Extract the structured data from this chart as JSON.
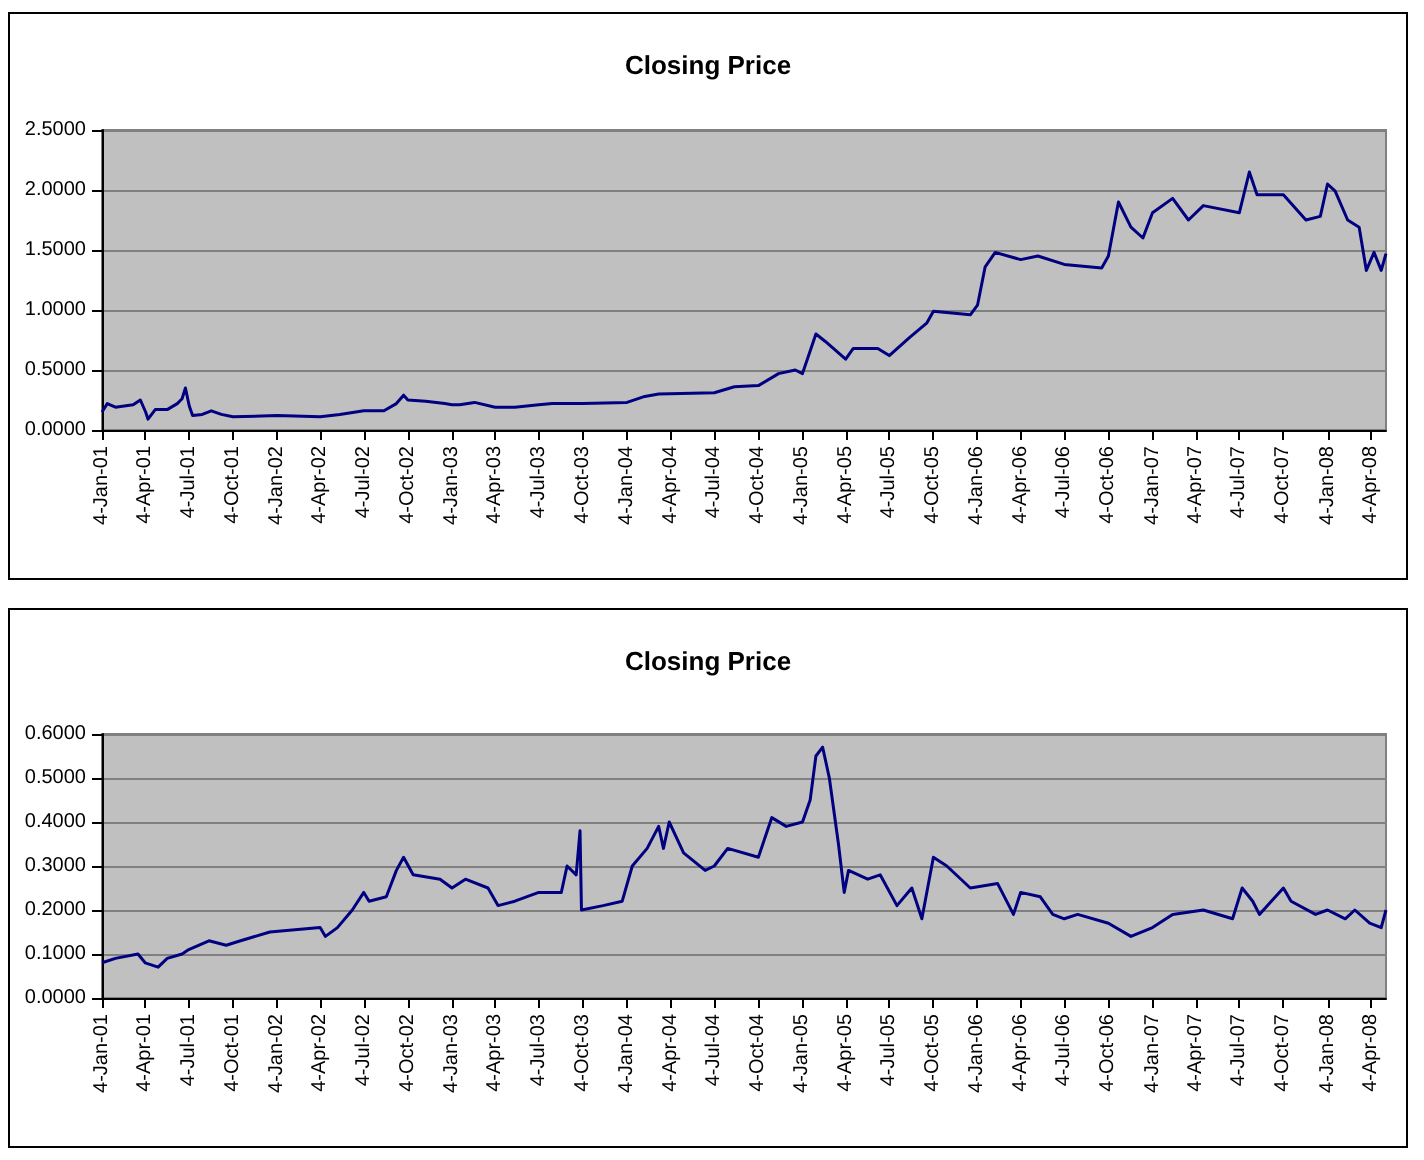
{
  "chart_data": [
    {
      "type": "line",
      "title": "Closing Price",
      "x": [
        "2001-01-04",
        "2001-01-15",
        "2001-02-01",
        "2001-03-10",
        "2001-03-25",
        "2001-04-05",
        "2001-04-10",
        "2001-04-25",
        "2001-05-20",
        "2001-06-10",
        "2001-06-20",
        "2001-06-27",
        "2001-07-05",
        "2001-07-12",
        "2001-08-01",
        "2001-08-20",
        "2001-09-10",
        "2001-10-04",
        "2002-01-04",
        "2002-04-04",
        "2002-05-15",
        "2002-07-04",
        "2002-08-15",
        "2002-09-10",
        "2002-09-25",
        "2002-10-04",
        "2002-11-10",
        "2002-12-20",
        "2003-01-04",
        "2003-01-20",
        "2003-02-20",
        "2003-04-04",
        "2003-05-15",
        "2003-07-04",
        "2003-08-01",
        "2003-10-04",
        "2004-01-04",
        "2004-02-10",
        "2004-03-10",
        "2004-07-04",
        "2004-08-15",
        "2004-10-04",
        "2004-11-15",
        "2004-12-20",
        "2005-01-04",
        "2005-02-01",
        "2005-02-20",
        "2005-04-04",
        "2005-04-20",
        "2005-06-10",
        "2005-07-04",
        "2005-08-15",
        "2005-09-20",
        "2005-10-04",
        "2005-12-20",
        "2006-01-04",
        "2006-01-20",
        "2006-02-10",
        "2006-04-04",
        "2006-05-10",
        "2006-07-04",
        "2006-09-20",
        "2006-10-04",
        "2006-10-25",
        "2006-11-20",
        "2006-12-15",
        "2007-01-04",
        "2007-02-15",
        "2007-03-20",
        "2007-04-20",
        "2007-07-04",
        "2007-07-25",
        "2007-08-10",
        "2007-10-04",
        "2007-11-20",
        "2007-12-20",
        "2008-01-04",
        "2008-01-20",
        "2008-02-15",
        "2008-03-10",
        "2008-03-25",
        "2008-04-10",
        "2008-04-25",
        "2008-05-05"
      ],
      "series": [
        {
          "color": "#000080",
          "values": [
            0.15,
            0.22,
            0.19,
            0.21,
            0.25,
            0.15,
            0.09,
            0.17,
            0.17,
            0.22,
            0.26,
            0.35,
            0.2,
            0.12,
            0.13,
            0.16,
            0.13,
            0.11,
            0.12,
            0.11,
            0.13,
            0.16,
            0.16,
            0.22,
            0.29,
            0.25,
            0.24,
            0.22,
            0.21,
            0.21,
            0.23,
            0.19,
            0.19,
            0.21,
            0.22,
            0.22,
            0.23,
            0.28,
            0.3,
            0.31,
            0.36,
            0.37,
            0.47,
            0.5,
            0.47,
            0.8,
            0.74,
            0.59,
            0.68,
            0.68,
            0.62,
            0.77,
            0.89,
            0.99,
            0.96,
            1.04,
            1.36,
            1.48,
            1.42,
            1.45,
            1.38,
            1.35,
            1.45,
            1.9,
            1.69,
            1.6,
            1.81,
            1.93,
            1.75,
            1.87,
            1.81,
            2.15,
            1.96,
            1.96,
            1.75,
            1.78,
            2.05,
            1.99,
            1.75,
            1.69,
            1.33,
            1.48,
            1.33,
            1.47
          ]
        }
      ],
      "xlim": [
        "2001-01-04",
        "2008-05-05"
      ],
      "xticks": [
        {
          "value": "2001-01-04",
          "label": "4-Jan-01"
        },
        {
          "value": "2001-04-04",
          "label": "4-Apr-01"
        },
        {
          "value": "2001-07-04",
          "label": "4-Jul-01"
        },
        {
          "value": "2001-10-04",
          "label": "4-Oct-01"
        },
        {
          "value": "2002-01-04",
          "label": "4-Jan-02"
        },
        {
          "value": "2002-04-04",
          "label": "4-Apr-02"
        },
        {
          "value": "2002-07-04",
          "label": "4-Jul-02"
        },
        {
          "value": "2002-10-04",
          "label": "4-Oct-02"
        },
        {
          "value": "2003-01-04",
          "label": "4-Jan-03"
        },
        {
          "value": "2003-04-04",
          "label": "4-Apr-03"
        },
        {
          "value": "2003-07-04",
          "label": "4-Jul-03"
        },
        {
          "value": "2003-10-04",
          "label": "4-Oct-03"
        },
        {
          "value": "2004-01-04",
          "label": "4-Jan-04"
        },
        {
          "value": "2004-04-04",
          "label": "4-Apr-04"
        },
        {
          "value": "2004-07-04",
          "label": "4-Jul-04"
        },
        {
          "value": "2004-10-04",
          "label": "4-Oct-04"
        },
        {
          "value": "2005-01-04",
          "label": "4-Jan-05"
        },
        {
          "value": "2005-04-04",
          "label": "4-Apr-05"
        },
        {
          "value": "2005-07-04",
          "label": "4-Jul-05"
        },
        {
          "value": "2005-10-04",
          "label": "4-Oct-05"
        },
        {
          "value": "2006-01-04",
          "label": "4-Jan-06"
        },
        {
          "value": "2006-04-04",
          "label": "4-Apr-06"
        },
        {
          "value": "2006-07-04",
          "label": "4-Jul-06"
        },
        {
          "value": "2006-10-04",
          "label": "4-Oct-06"
        },
        {
          "value": "2007-01-04",
          "label": "4-Jan-07"
        },
        {
          "value": "2007-04-04",
          "label": "4-Apr-07"
        },
        {
          "value": "2007-07-04",
          "label": "4-Jul-07"
        },
        {
          "value": "2007-10-04",
          "label": "4-Oct-07"
        },
        {
          "value": "2008-01-04",
          "label": "4-Jan-08"
        },
        {
          "value": "2008-04-04",
          "label": "4-Apr-08"
        }
      ],
      "ylim": [
        0,
        2.5
      ],
      "yticks": [
        {
          "value": 0,
          "label": "0.0000"
        },
        {
          "value": 0.5,
          "label": "0.5000"
        },
        {
          "value": 1,
          "label": "1.0000"
        },
        {
          "value": 1.5,
          "label": "1.5000"
        },
        {
          "value": 2,
          "label": "2.0000"
        },
        {
          "value": 2.5,
          "label": "2.5000"
        }
      ],
      "grid": "y"
    },
    {
      "type": "line",
      "title": "Closing Price",
      "x": [
        "2001-01-04",
        "2001-02-01",
        "2001-03-20",
        "2001-04-04",
        "2001-05-01",
        "2001-05-20",
        "2001-06-20",
        "2001-07-04",
        "2001-08-15",
        "2001-09-20",
        "2001-10-20",
        "2001-12-20",
        "2002-04-04",
        "2002-04-15",
        "2002-05-10",
        "2002-06-10",
        "2002-07-04",
        "2002-07-15",
        "2002-08-20",
        "2002-09-10",
        "2002-09-25",
        "2002-10-15",
        "2002-12-10",
        "2003-01-04",
        "2003-02-01",
        "2003-03-20",
        "2003-04-10",
        "2003-05-15",
        "2003-07-04",
        "2003-08-20",
        "2003-09-01",
        "2003-09-20",
        "2003-09-28",
        "2003-10-01",
        "2003-11-15",
        "2003-12-25",
        "2004-01-15",
        "2004-02-15",
        "2004-03-10",
        "2004-03-20",
        "2004-04-01",
        "2004-05-01",
        "2004-06-15",
        "2004-07-04",
        "2004-08-01",
        "2004-10-04",
        "2004-11-01",
        "2004-12-01",
        "2005-01-04",
        "2005-01-20",
        "2005-02-01",
        "2005-02-15",
        "2005-03-01",
        "2005-03-20",
        "2005-04-01",
        "2005-04-10",
        "2005-05-20",
        "2005-06-15",
        "2005-07-20",
        "2005-08-20",
        "2005-09-10",
        "2005-10-04",
        "2005-11-01",
        "2005-12-20",
        "2006-02-15",
        "2006-03-20",
        "2006-04-04",
        "2006-05-15",
        "2006-06-10",
        "2006-07-04",
        "2006-08-01",
        "2006-10-04",
        "2006-11-20",
        "2007-01-04",
        "2007-02-15",
        "2007-04-20",
        "2007-06-20",
        "2007-07-10",
        "2007-08-01",
        "2007-08-15",
        "2007-10-04",
        "2007-10-20",
        "2007-12-10",
        "2008-01-04",
        "2008-02-10",
        "2008-03-01",
        "2008-04-01",
        "2008-04-25",
        "2008-05-05"
      ],
      "series": [
        {
          "color": "#000080",
          "values": [
            0.08,
            0.09,
            0.1,
            0.08,
            0.07,
            0.09,
            0.1,
            0.11,
            0.13,
            0.12,
            0.13,
            0.15,
            0.16,
            0.14,
            0.16,
            0.2,
            0.24,
            0.22,
            0.23,
            0.29,
            0.32,
            0.28,
            0.27,
            0.25,
            0.27,
            0.25,
            0.21,
            0.22,
            0.24,
            0.24,
            0.3,
            0.28,
            0.38,
            0.2,
            0.21,
            0.22,
            0.3,
            0.34,
            0.39,
            0.34,
            0.4,
            0.33,
            0.29,
            0.3,
            0.34,
            0.32,
            0.41,
            0.39,
            0.4,
            0.45,
            0.55,
            0.57,
            0.5,
            0.35,
            0.24,
            0.29,
            0.27,
            0.28,
            0.21,
            0.25,
            0.18,
            0.32,
            0.3,
            0.25,
            0.26,
            0.19,
            0.24,
            0.23,
            0.19,
            0.18,
            0.19,
            0.17,
            0.14,
            0.16,
            0.19,
            0.2,
            0.18,
            0.25,
            0.22,
            0.19,
            0.25,
            0.22,
            0.19,
            0.2,
            0.18,
            0.2,
            0.17,
            0.16,
            0.2
          ]
        }
      ],
      "xlim": [
        "2001-01-04",
        "2008-05-05"
      ],
      "xticks": [
        {
          "value": "2001-01-04",
          "label": "4-Jan-01"
        },
        {
          "value": "2001-04-04",
          "label": "4-Apr-01"
        },
        {
          "value": "2001-07-04",
          "label": "4-Jul-01"
        },
        {
          "value": "2001-10-04",
          "label": "4-Oct-01"
        },
        {
          "value": "2002-01-04",
          "label": "4-Jan-02"
        },
        {
          "value": "2002-04-04",
          "label": "4-Apr-02"
        },
        {
          "value": "2002-07-04",
          "label": "4-Jul-02"
        },
        {
          "value": "2002-10-04",
          "label": "4-Oct-02"
        },
        {
          "value": "2003-01-04",
          "label": "4-Jan-03"
        },
        {
          "value": "2003-04-04",
          "label": "4-Apr-03"
        },
        {
          "value": "2003-07-04",
          "label": "4-Jul-03"
        },
        {
          "value": "2003-10-04",
          "label": "4-Oct-03"
        },
        {
          "value": "2004-01-04",
          "label": "4-Jan-04"
        },
        {
          "value": "2004-04-04",
          "label": "4-Apr-04"
        },
        {
          "value": "2004-07-04",
          "label": "4-Jul-04"
        },
        {
          "value": "2004-10-04",
          "label": "4-Oct-04"
        },
        {
          "value": "2005-01-04",
          "label": "4-Jan-05"
        },
        {
          "value": "2005-04-04",
          "label": "4-Apr-05"
        },
        {
          "value": "2005-07-04",
          "label": "4-Jul-05"
        },
        {
          "value": "2005-10-04",
          "label": "4-Oct-05"
        },
        {
          "value": "2006-01-04",
          "label": "4-Jan-06"
        },
        {
          "value": "2006-04-04",
          "label": "4-Apr-06"
        },
        {
          "value": "2006-07-04",
          "label": "4-Jul-06"
        },
        {
          "value": "2006-10-04",
          "label": "4-Oct-06"
        },
        {
          "value": "2007-01-04",
          "label": "4-Jan-07"
        },
        {
          "value": "2007-04-04",
          "label": "4-Apr-07"
        },
        {
          "value": "2007-07-04",
          "label": "4-Jul-07"
        },
        {
          "value": "2007-10-04",
          "label": "4-Oct-07"
        },
        {
          "value": "2008-01-04",
          "label": "4-Jan-08"
        },
        {
          "value": "2008-04-04",
          "label": "4-Apr-08"
        }
      ],
      "ylim": [
        0,
        0.6
      ],
      "yticks": [
        {
          "value": 0,
          "label": "0.0000"
        },
        {
          "value": 0.1,
          "label": "0.1000"
        },
        {
          "value": 0.2,
          "label": "0.2000"
        },
        {
          "value": 0.3,
          "label": "0.3000"
        },
        {
          "value": 0.4,
          "label": "0.4000"
        },
        {
          "value": 0.5,
          "label": "0.5000"
        },
        {
          "value": 0.6,
          "label": "0.6000"
        }
      ],
      "grid": "y"
    }
  ]
}
